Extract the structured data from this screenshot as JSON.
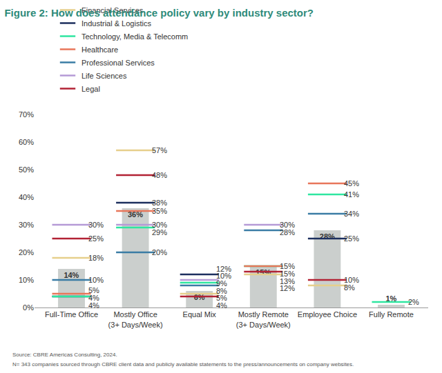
{
  "chart_data": {
    "type": "bar",
    "title": "Figure 2: How does attendance policy vary by industry sector?",
    "categories": [
      "Full-Time Office",
      "Mostly Office (3+ Days/Week)",
      "Equal Mix",
      "Mostly Remote (3+ Days/Week)",
      "Employee Choice",
      "Fully Remote"
    ],
    "values": [
      14,
      36,
      6,
      15,
      28,
      1
    ],
    "value_labels": [
      "14%",
      "36%",
      "6%",
      "15%",
      "28%",
      "1%"
    ],
    "color": "#cbcfcd",
    "series": [
      {
        "name": "Financial Services",
        "type": "scatter",
        "marker": "line-ew-open",
        "color": "#e6cf8b",
        "values": [
          18,
          57,
          5,
          12,
          8,
          null
        ],
        "value_labels": [
          "18%",
          "57%",
          "5%",
          "12%",
          "8%",
          null
        ]
      },
      {
        "name": "Industrial & Logistics",
        "type": "scatter",
        "marker": "line-ew-open",
        "color": "#1c2f5e",
        "values": [
          4,
          38,
          12,
          null,
          25,
          null
        ],
        "value_labels": [
          "4%",
          "38%",
          "12%",
          null,
          "25%",
          null
        ]
      },
      {
        "name": "Technology, Media & Telecomm",
        "type": "scatter",
        "marker": "line-ew-open",
        "color": "#2ee6a0",
        "values": [
          4,
          29,
          9,
          15,
          41,
          2
        ],
        "value_labels": [
          "4%",
          "29%",
          "9%",
          "15%",
          "41%",
          "2%"
        ]
      },
      {
        "name": "Healthcare",
        "type": "scatter",
        "marker": "line-ew-open",
        "color": "#e8765a",
        "values": [
          5,
          35,
          null,
          15,
          45,
          null
        ],
        "value_labels": [
          "5%",
          "35%",
          null,
          "15%",
          "45%",
          null
        ]
      },
      {
        "name": "Professional Services",
        "type": "scatter",
        "marker": "line-ew-open",
        "color": "#3a7ca5",
        "values": [
          10,
          20,
          8,
          28,
          34,
          null
        ],
        "value_labels": [
          "10%",
          "20%",
          "8%",
          "28%",
          "34%",
          null
        ]
      },
      {
        "name": "Life Sciences",
        "type": "scatter",
        "marker": "line-ew-open",
        "color": "#b59ad6",
        "values": [
          30,
          30,
          10,
          30,
          null,
          null
        ],
        "value_labels": [
          "30%",
          "30%",
          "10%",
          "30%",
          null,
          null
        ]
      },
      {
        "name": "Legal",
        "type": "scatter",
        "marker": "line-ew-open",
        "color": "#b22234",
        "values": [
          25,
          48,
          4,
          13,
          10,
          null
        ],
        "value_labels": [
          "25%",
          "48%",
          "4%",
          "13%",
          "10%",
          null
        ]
      }
    ],
    "ylim": [
      0,
      70
    ],
    "yticks": [
      {
        "value": 0,
        "label": "0%"
      },
      {
        "value": 10,
        "label": "10%"
      },
      {
        "value": 20,
        "label": "20%"
      },
      {
        "value": 30,
        "label": "30%"
      },
      {
        "value": 40,
        "label": "40%"
      },
      {
        "value": 50,
        "label": "50%"
      },
      {
        "value": 60,
        "label": "60%"
      },
      {
        "value": 70,
        "label": "70%"
      }
    ],
    "grid": false,
    "legend": "top",
    "data_labels": true,
    "annotations": [
      "Source: CBRE Americas Consulting, 2024.",
      "N= 343 companies sourced through CBRE client data and publicly available statements to the press/announcements on company websites."
    ]
  }
}
